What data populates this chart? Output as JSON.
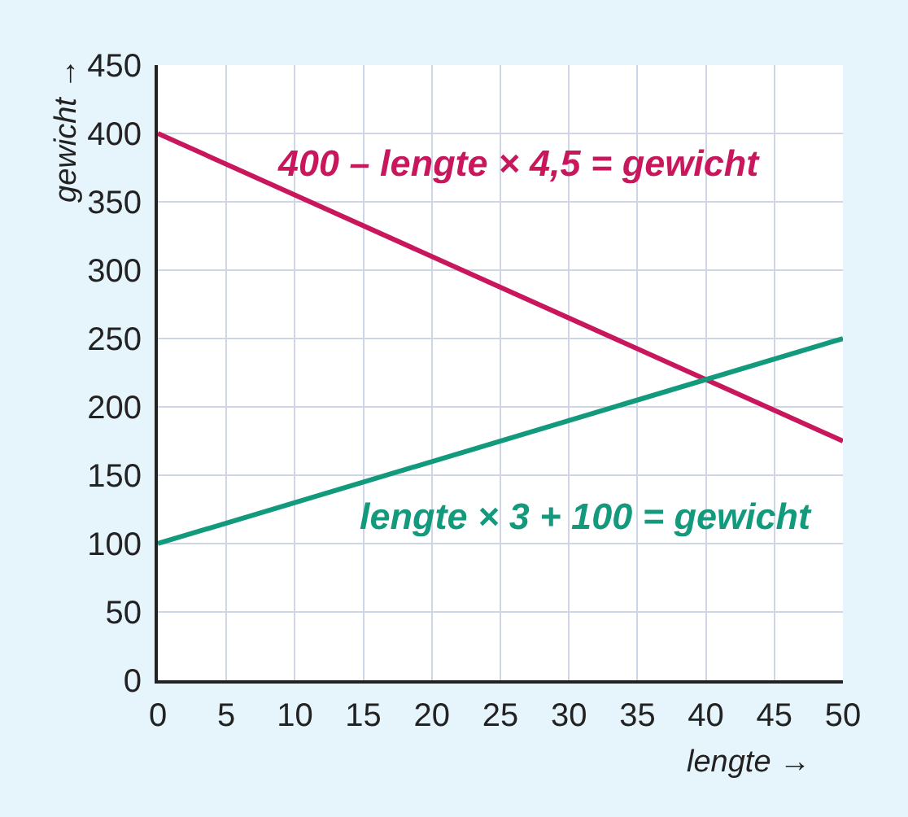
{
  "chart_data": {
    "type": "line",
    "xlabel": "lengte →",
    "ylabel": "gewicht →",
    "x": [
      0,
      50
    ],
    "series": [
      {
        "name": "400 – lengte × 4,5 = gewicht",
        "color": "#c8175d",
        "values": [
          400,
          175
        ]
      },
      {
        "name": "lengte × 3 + 100 = gewicht",
        "color": "#139a7c",
        "values": [
          100,
          250
        ]
      }
    ],
    "xlim": [
      0,
      50
    ],
    "ylim": [
      0,
      450
    ],
    "xticks": [
      0,
      5,
      10,
      15,
      20,
      25,
      30,
      35,
      40,
      45,
      50
    ],
    "yticks": [
      0,
      50,
      100,
      150,
      200,
      250,
      300,
      350,
      400,
      450
    ],
    "grid": true,
    "line_style": "solid"
  }
}
